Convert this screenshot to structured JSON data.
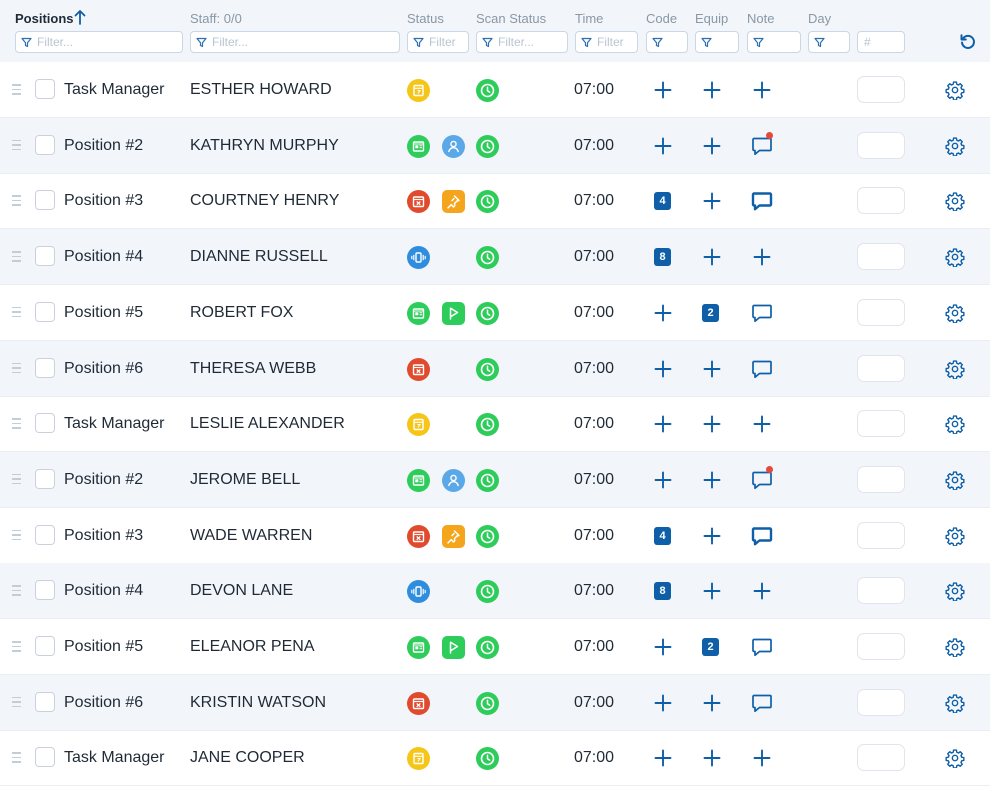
{
  "header": {
    "positions_label": "Positions",
    "staff_label": "Staff: 0/0",
    "status_label": "Status",
    "scan_status_label": "Scan Status",
    "time_label": "Time",
    "code_label": "Code",
    "equip_label": "Equip",
    "note_label": "Note",
    "day_label": "Day",
    "filters": {
      "positions": "Filter...",
      "staff": "Filter...",
      "status": "Filter",
      "scan": "Filter...",
      "time": "Filter",
      "number": "#"
    }
  },
  "colors": {
    "accent": "#0f5fa8",
    "yellow": "#f5c518",
    "green": "#2ecc5a",
    "red": "#e04a2d",
    "orange": "#f5a51c",
    "blue": "#2f8de0",
    "light_blue": "#5aa8e8",
    "alert_dot": "#e5493c"
  },
  "rows": [
    {
      "position": "Task Manager",
      "staff": "ESTHER HOWARD",
      "status_icons": [
        "calendar-clock-yellow"
      ],
      "time": "07:00",
      "code": "",
      "equip": "",
      "note": "add"
    },
    {
      "position": "Position #2",
      "staff": "KATHRYN MURPHY",
      "status_icons": [
        "id-card-green",
        "person-blue"
      ],
      "time": "07:00",
      "code": "",
      "equip": "",
      "note": "alert"
    },
    {
      "position": "Position #3",
      "staff": "COURTNEY HENRY",
      "status_icons": [
        "calendar-x-red",
        "pin-orange"
      ],
      "time": "07:00",
      "code": "4",
      "equip": "",
      "note": "filled"
    },
    {
      "position": "Position #4",
      "staff": "DIANNE RUSSELL",
      "status_icons": [
        "vibrate-blue"
      ],
      "time": "07:00",
      "code": "8",
      "equip": "",
      "note": "add"
    },
    {
      "position": "Position #5",
      "staff": "ROBERT FOX",
      "status_icons": [
        "id-card-green",
        "flag-green"
      ],
      "time": "07:00",
      "code": "",
      "equip": "2",
      "note": "outline"
    },
    {
      "position": "Position #6",
      "staff": "THERESA WEBB",
      "status_icons": [
        "calendar-x-red"
      ],
      "time": "07:00",
      "code": "",
      "equip": "",
      "note": "outline"
    },
    {
      "position": "Task Manager",
      "staff": "LESLIE ALEXANDER",
      "status_icons": [
        "calendar-clock-yellow"
      ],
      "time": "07:00",
      "code": "",
      "equip": "",
      "note": "add"
    },
    {
      "position": "Position #2",
      "staff": "JEROME BELL",
      "status_icons": [
        "id-card-green",
        "person-blue"
      ],
      "time": "07:00",
      "code": "",
      "equip": "",
      "note": "alert"
    },
    {
      "position": "Position #3",
      "staff": "WADE WARREN",
      "status_icons": [
        "calendar-x-red",
        "pin-orange"
      ],
      "time": "07:00",
      "code": "4",
      "equip": "",
      "note": "filled"
    },
    {
      "position": "Position #4",
      "staff": "DEVON LANE",
      "status_icons": [
        "vibrate-blue"
      ],
      "time": "07:00",
      "code": "8",
      "equip": "",
      "note": "add"
    },
    {
      "position": "Position #5",
      "staff": "ELEANOR PENA",
      "status_icons": [
        "id-card-green",
        "flag-green"
      ],
      "time": "07:00",
      "code": "",
      "equip": "2",
      "note": "outline"
    },
    {
      "position": "Position #6",
      "staff": "KRISTIN WATSON",
      "status_icons": [
        "calendar-x-red"
      ],
      "time": "07:00",
      "code": "",
      "equip": "",
      "note": "outline"
    },
    {
      "position": "Task Manager",
      "staff": "JANE COOPER",
      "status_icons": [
        "calendar-clock-yellow"
      ],
      "time": "07:00",
      "code": "",
      "equip": "",
      "note": "add"
    }
  ]
}
